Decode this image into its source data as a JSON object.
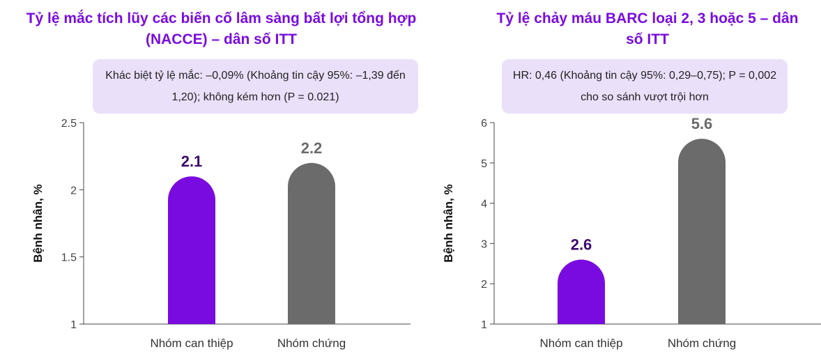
{
  "chart_data": [
    {
      "type": "bar",
      "title": "Tỷ lệ mắc tích lũy các biến cố lâm sàng bất lợi tổng hợp (NACCE) – dân số ITT",
      "note": "Khác biệt tỷ lệ mắc: –0,09% (Khoảng tin cậy 95%: –1,39 đến 1,20); không kém hơn (P = 0.021)",
      "ylabel": "Bệnh nhân, %",
      "xlabel": "",
      "ylim": [
        1,
        2.5
      ],
      "yticks": [
        1,
        1.5,
        2,
        2.5
      ],
      "ytick_labels": [
        "1",
        "1.5",
        "2",
        "2.5"
      ],
      "categories": [
        "Nhóm can thiệp",
        "Nhóm chứng"
      ],
      "values": [
        2.1,
        2.2
      ],
      "value_labels": [
        "2.1",
        "2.2"
      ],
      "colors": [
        "#7A0BE0",
        "#6B6B6B"
      ],
      "label_colors": [
        "#3D0A6B",
        "#6B6B6B"
      ],
      "grid": false
    },
    {
      "type": "bar",
      "title": "Tỷ lệ chảy máu BARC loại 2, 3 hoặc 5 – dân số ITT",
      "note": "HR: 0,46 (Khoảng tin cậy 95%: 0,29–0,75); P = 0,002 cho so sánh vượt trội hơn",
      "ylabel": "Bệnh nhân, %",
      "xlabel": "",
      "ylim": [
        1,
        6
      ],
      "yticks": [
        1,
        2,
        3,
        4,
        5,
        6
      ],
      "ytick_labels": [
        "1",
        "2",
        "3",
        "4",
        "5",
        "6"
      ],
      "categories": [
        "Nhóm can thiệp",
        "Nhóm chứng"
      ],
      "values": [
        2.6,
        5.6
      ],
      "value_labels": [
        "2.6",
        "5.6"
      ],
      "colors": [
        "#7A0BE0",
        "#6B6B6B"
      ],
      "label_colors": [
        "#3D0A6B",
        "#6B6B6B"
      ],
      "grid": false
    }
  ]
}
